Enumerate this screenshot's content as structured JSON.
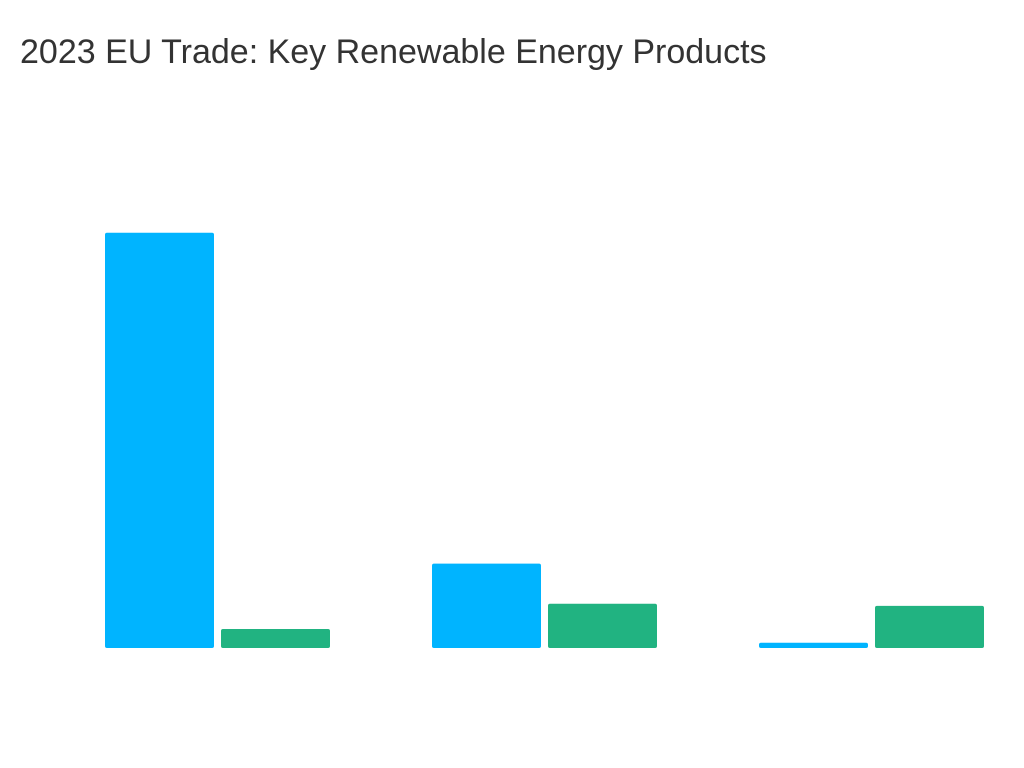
{
  "chart_data": {
    "type": "bar",
    "title": "2023 EU Trade: Key Renewable Energy Products",
    "categories": [
      null,
      null,
      null
    ],
    "series": [
      {
        "color": "#00b4ff",
        "values": [
          19.7,
          4.0,
          0.25
        ]
      },
      {
        "color": "#21b381",
        "values": [
          0.9,
          2.1,
          2.0
        ]
      }
    ],
    "ylim": [
      0,
      25
    ]
  }
}
